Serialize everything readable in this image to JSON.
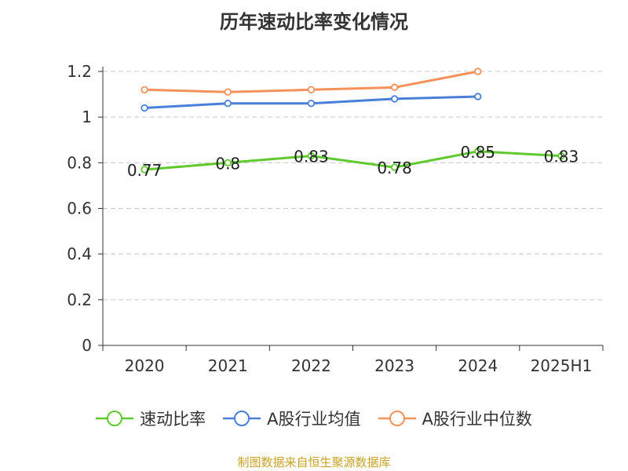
{
  "chart_data": {
    "type": "line",
    "title": "历年速动比率变化情况",
    "categories": [
      "2020",
      "2021",
      "2022",
      "2023",
      "2024",
      "2025H1"
    ],
    "ylim": [
      0,
      1.2
    ],
    "yticks": [
      "0",
      "0.2",
      "0.4",
      "0.6",
      "0.8",
      "1",
      "1.2"
    ],
    "grid": true,
    "legend_position": "bottom",
    "series": [
      {
        "name": "速动比率",
        "color": "#5fc92e",
        "values": [
          0.77,
          0.8,
          0.83,
          0.78,
          0.85,
          0.83
        ],
        "data_labels": [
          "0.77",
          "0.8",
          "0.83",
          "0.78",
          "0.85",
          "0.83"
        ]
      },
      {
        "name": "A股行业均值",
        "color": "#4a7fd9",
        "values": [
          1.04,
          1.06,
          1.06,
          1.08,
          1.09,
          null
        ]
      },
      {
        "name": "A股行业中位数",
        "color": "#f5915a",
        "values": [
          1.12,
          1.11,
          1.12,
          1.13,
          1.2,
          null
        ]
      }
    ],
    "source": "制图数据来自恒生聚源数据库"
  }
}
